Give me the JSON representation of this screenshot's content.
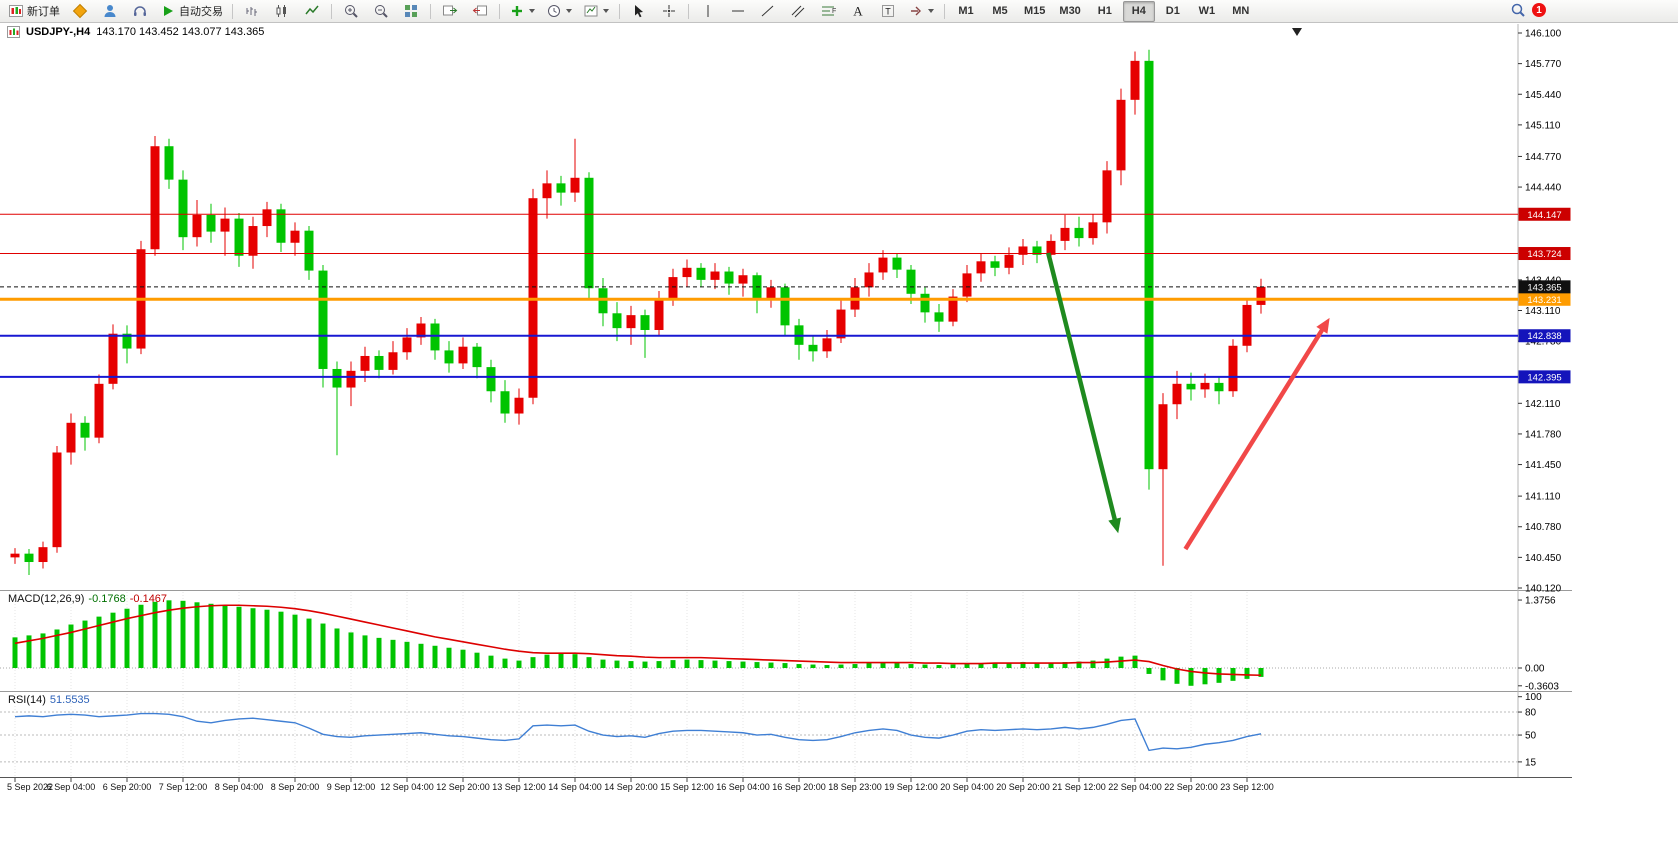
{
  "toolbar": {
    "new_order_label": "新订单",
    "auto_trading_label": "自动交易",
    "timeframes": [
      "M1",
      "M5",
      "M15",
      "M30",
      "H1",
      "H4",
      "D1",
      "W1",
      "MN"
    ],
    "active_timeframe": "H4",
    "notification_count": "1"
  },
  "title": {
    "symbol_period": "USDJPY-,H4",
    "ohlc": "143.170 143.452 143.077 143.365"
  },
  "indicators": {
    "macd_label": "MACD(12,26,9)",
    "macd_main_value": "-0.1768",
    "macd_signal_value": "-0.1467",
    "rsi_label": "RSI(14)",
    "rsi_value": "51.5535"
  },
  "chart_data": {
    "type": "candlestick",
    "symbol": "USDJPY-",
    "timeframe": "H4",
    "current_bar": {
      "open": 143.17,
      "high": 143.452,
      "low": 143.077,
      "close": 143.365
    },
    "colors": {
      "bull": "#e60000",
      "bear": "#00c400",
      "macd_hist": "#00c400",
      "macd_signal": "#dd0000",
      "rsi_line": "#3f7fd4"
    },
    "price_axis": {
      "min": 140.12,
      "max": 146.1,
      "ticks": [
        146.1,
        145.77,
        145.44,
        145.11,
        144.77,
        144.44,
        143.44,
        143.11,
        142.78,
        142.11,
        141.78,
        141.45,
        141.11,
        140.78,
        140.45,
        140.12
      ]
    },
    "hlines": [
      {
        "price": 144.147,
        "label": "144.147",
        "color": "#e00000",
        "width": 1,
        "style": "solid",
        "badge_color": "#cc0000"
      },
      {
        "price": 143.724,
        "label": "143.724",
        "color": "#e00000",
        "width": 1,
        "style": "solid",
        "badge_color": "#cc0000"
      },
      {
        "price": 143.231,
        "label": "143.231",
        "color": "#ff9c00",
        "width": 3,
        "style": "solid",
        "badge_color": "#ff9c00"
      },
      {
        "price": 142.838,
        "label": "142.838",
        "color": "#1818d2",
        "width": 2,
        "style": "solid",
        "badge_color": "#1414bb"
      },
      {
        "price": 142.395,
        "label": "142.395",
        "color": "#1818d2",
        "width": 2,
        "style": "solid",
        "badge_color": "#1414bb"
      },
      {
        "price": 143.365,
        "label": "143.365",
        "color": "#101010",
        "width": 1,
        "style": "dash",
        "badge_color": "#101010"
      }
    ],
    "time_labels": [
      "5 Sep 2022",
      "6 Sep 04:00",
      "6 Sep 20:00",
      "7 Sep 12:00",
      "8 Sep 04:00",
      "8 Sep 20:00",
      "9 Sep 12:00",
      "12 Sep 04:00",
      "12 Sep 20:00",
      "13 Sep 12:00",
      "14 Sep 04:00",
      "14 Sep 20:00",
      "15 Sep 12:00",
      "16 Sep 04:00",
      "16 Sep 20:00",
      "18 Sep 23:00",
      "19 Sep 12:00",
      "20 Sep 04:00",
      "20 Sep 20:00",
      "21 Sep 12:00",
      "22 Sep 04:00",
      "22 Sep 20:00",
      "23 Sep 12:00"
    ],
    "candles": [
      [
        140.45,
        140.55,
        140.38,
        140.49
      ],
      [
        140.49,
        140.54,
        140.26,
        140.4
      ],
      [
        140.4,
        140.62,
        140.33,
        140.56
      ],
      [
        140.56,
        141.65,
        140.5,
        141.58
      ],
      [
        141.58,
        142.0,
        141.45,
        141.9
      ],
      [
        141.9,
        141.97,
        141.6,
        141.74
      ],
      [
        141.74,
        142.42,
        141.68,
        142.32
      ],
      [
        142.32,
        142.96,
        142.26,
        142.86
      ],
      [
        142.86,
        142.95,
        142.54,
        142.7
      ],
      [
        142.7,
        143.86,
        142.64,
        143.77
      ],
      [
        143.77,
        144.99,
        143.7,
        144.88
      ],
      [
        144.88,
        144.96,
        144.42,
        144.52
      ],
      [
        144.52,
        144.62,
        143.76,
        143.9
      ],
      [
        143.9,
        144.3,
        143.8,
        144.14
      ],
      [
        144.14,
        144.26,
        143.84,
        143.96
      ],
      [
        143.96,
        144.22,
        143.7,
        144.1
      ],
      [
        144.1,
        144.16,
        143.58,
        143.7
      ],
      [
        143.7,
        144.12,
        143.56,
        144.02
      ],
      [
        144.02,
        144.28,
        143.9,
        144.2
      ],
      [
        144.2,
        144.26,
        143.74,
        143.84
      ],
      [
        143.84,
        144.06,
        143.7,
        143.97
      ],
      [
        143.97,
        144.02,
        143.44,
        143.54
      ],
      [
        143.54,
        143.6,
        142.28,
        142.48
      ],
      [
        142.48,
        142.56,
        141.55,
        142.28
      ],
      [
        142.28,
        142.56,
        142.08,
        142.46
      ],
      [
        142.46,
        142.72,
        142.34,
        142.62
      ],
      [
        142.62,
        142.68,
        142.38,
        142.47
      ],
      [
        142.47,
        142.78,
        142.42,
        142.66
      ],
      [
        142.66,
        142.92,
        142.58,
        142.82
      ],
      [
        142.82,
        143.04,
        142.74,
        142.97
      ],
      [
        142.97,
        143.02,
        142.58,
        142.68
      ],
      [
        142.68,
        142.78,
        142.44,
        142.54
      ],
      [
        142.54,
        142.82,
        142.48,
        142.72
      ],
      [
        142.72,
        142.76,
        142.38,
        142.5
      ],
      [
        142.5,
        142.58,
        142.12,
        142.24
      ],
      [
        142.24,
        142.36,
        141.9,
        142.0
      ],
      [
        142.0,
        142.27,
        141.88,
        142.17
      ],
      [
        142.17,
        144.42,
        142.1,
        144.32
      ],
      [
        144.32,
        144.62,
        144.1,
        144.48
      ],
      [
        144.48,
        144.56,
        144.24,
        144.38
      ],
      [
        144.38,
        144.96,
        144.28,
        144.54
      ],
      [
        144.54,
        144.6,
        143.22,
        143.35
      ],
      [
        143.35,
        143.46,
        142.94,
        143.08
      ],
      [
        143.08,
        143.2,
        142.78,
        142.92
      ],
      [
        142.92,
        143.16,
        142.74,
        143.06
      ],
      [
        143.06,
        143.12,
        142.6,
        142.9
      ],
      [
        142.9,
        143.32,
        142.84,
        143.22
      ],
      [
        143.22,
        143.56,
        143.16,
        143.47
      ],
      [
        143.47,
        143.66,
        143.36,
        143.57
      ],
      [
        143.57,
        143.62,
        143.36,
        143.44
      ],
      [
        143.44,
        143.62,
        143.34,
        143.53
      ],
      [
        143.53,
        143.58,
        143.28,
        143.4
      ],
      [
        143.4,
        143.56,
        143.26,
        143.49
      ],
      [
        143.49,
        143.52,
        143.08,
        143.24
      ],
      [
        143.24,
        143.44,
        143.14,
        143.36
      ],
      [
        143.36,
        143.4,
        142.84,
        142.95
      ],
      [
        142.95,
        143.02,
        142.58,
        142.74
      ],
      [
        142.74,
        142.84,
        142.56,
        142.67
      ],
      [
        142.67,
        142.9,
        142.6,
        142.81
      ],
      [
        142.81,
        143.22,
        142.76,
        143.12
      ],
      [
        143.12,
        143.46,
        143.04,
        143.36
      ],
      [
        143.36,
        143.62,
        143.26,
        143.52
      ],
      [
        143.52,
        143.76,
        143.44,
        143.68
      ],
      [
        143.68,
        143.73,
        143.46,
        143.55
      ],
      [
        143.55,
        143.6,
        143.18,
        143.29
      ],
      [
        143.29,
        143.36,
        142.98,
        143.09
      ],
      [
        143.09,
        143.18,
        142.88,
        142.99
      ],
      [
        142.99,
        143.34,
        142.94,
        143.26
      ],
      [
        143.26,
        143.6,
        143.2,
        143.51
      ],
      [
        143.51,
        143.72,
        143.42,
        143.64
      ],
      [
        143.64,
        143.7,
        143.48,
        143.57
      ],
      [
        143.57,
        143.79,
        143.5,
        143.71
      ],
      [
        143.71,
        143.88,
        143.6,
        143.8
      ],
      [
        143.8,
        143.86,
        143.62,
        143.71
      ],
      [
        143.71,
        143.93,
        143.66,
        143.86
      ],
      [
        143.86,
        144.14,
        143.76,
        144.0
      ],
      [
        144.0,
        144.12,
        143.8,
        143.89
      ],
      [
        143.89,
        144.15,
        143.82,
        144.06
      ],
      [
        144.06,
        144.72,
        143.94,
        144.62
      ],
      [
        144.62,
        145.5,
        144.46,
        145.38
      ],
      [
        145.38,
        145.9,
        145.22,
        145.8
      ],
      [
        145.8,
        145.92,
        141.18,
        141.4
      ],
      [
        141.4,
        142.22,
        140.36,
        142.1
      ],
      [
        142.1,
        142.46,
        141.94,
        142.32
      ],
      [
        142.32,
        142.44,
        142.14,
        142.26
      ],
      [
        142.26,
        142.43,
        142.17,
        142.33
      ],
      [
        142.33,
        142.4,
        142.1,
        142.24
      ],
      [
        142.24,
        142.8,
        142.18,
        142.73
      ],
      [
        142.73,
        143.24,
        142.66,
        143.17
      ],
      [
        143.17,
        143.452,
        143.077,
        143.365
      ]
    ],
    "arrows": [
      {
        "name": "bearish-projection-arrow",
        "color": "#1f8a1f",
        "from": {
          "index": 73.8,
          "price": 143.73
        },
        "to": {
          "index": 78.8,
          "price": 140.71
        }
      },
      {
        "name": "bullish-projection-arrow",
        "color": "#f14848",
        "from": {
          "index": 83.6,
          "price": 140.54
        },
        "to": {
          "index": 93.9,
          "price": 143.03
        }
      }
    ],
    "macd": {
      "histogram": [
        0.62,
        0.66,
        0.7,
        0.78,
        0.88,
        0.96,
        1.04,
        1.12,
        1.2,
        1.28,
        1.34,
        1.37,
        1.36,
        1.33,
        1.3,
        1.27,
        1.24,
        1.21,
        1.18,
        1.14,
        1.08,
        1.0,
        0.9,
        0.8,
        0.72,
        0.66,
        0.61,
        0.57,
        0.53,
        0.49,
        0.45,
        0.41,
        0.37,
        0.31,
        0.25,
        0.19,
        0.15,
        0.22,
        0.27,
        0.29,
        0.28,
        0.22,
        0.17,
        0.15,
        0.14,
        0.13,
        0.14,
        0.16,
        0.17,
        0.16,
        0.15,
        0.14,
        0.13,
        0.12,
        0.11,
        0.1,
        0.08,
        0.07,
        0.06,
        0.07,
        0.08,
        0.1,
        0.11,
        0.1,
        0.08,
        0.07,
        0.06,
        0.07,
        0.09,
        0.1,
        0.11,
        0.11,
        0.12,
        0.11,
        0.11,
        0.12,
        0.13,
        0.15,
        0.19,
        0.23,
        0.25,
        -0.12,
        -0.25,
        -0.32,
        -0.36,
        -0.33,
        -0.3,
        -0.26,
        -0.22,
        -0.18
      ],
      "signal": [
        0.5,
        0.55,
        0.6,
        0.66,
        0.72,
        0.79,
        0.86,
        0.93,
        1.0,
        1.06,
        1.12,
        1.17,
        1.21,
        1.24,
        1.26,
        1.27,
        1.27,
        1.26,
        1.25,
        1.23,
        1.2,
        1.16,
        1.11,
        1.05,
        0.99,
        0.93,
        0.87,
        0.81,
        0.75,
        0.69,
        0.63,
        0.58,
        0.53,
        0.48,
        0.43,
        0.38,
        0.34,
        0.31,
        0.3,
        0.3,
        0.3,
        0.29,
        0.27,
        0.25,
        0.24,
        0.22,
        0.21,
        0.21,
        0.21,
        0.21,
        0.2,
        0.19,
        0.18,
        0.17,
        0.16,
        0.15,
        0.14,
        0.13,
        0.12,
        0.11,
        0.11,
        0.11,
        0.11,
        0.11,
        0.11,
        0.1,
        0.1,
        0.09,
        0.09,
        0.09,
        0.1,
        0.1,
        0.1,
        0.1,
        0.1,
        0.1,
        0.11,
        0.11,
        0.12,
        0.14,
        0.16,
        0.13,
        0.05,
        -0.02,
        -0.07,
        -0.1,
        -0.12,
        -0.13,
        -0.14,
        -0.1467
      ],
      "scale_labels": [
        "1.3756",
        "0.00",
        "-0.3603"
      ],
      "scale_values": [
        1.3756,
        0,
        -0.3603
      ]
    },
    "rsi": {
      "values": [
        74,
        75,
        74,
        76,
        77,
        76,
        74,
        75,
        76,
        78,
        78,
        77,
        74,
        68,
        66,
        69,
        71,
        72,
        70,
        68,
        66,
        59,
        51,
        48,
        47,
        49,
        50,
        51,
        52,
        53,
        51,
        49,
        48,
        46,
        44,
        43,
        45,
        62,
        63,
        62,
        63,
        55,
        50,
        48,
        49,
        47,
        52,
        55,
        56,
        56,
        55,
        54,
        53,
        50,
        51,
        47,
        44,
        43,
        44,
        48,
        53,
        56,
        58,
        56,
        50,
        47,
        46,
        50,
        55,
        57,
        56,
        57,
        58,
        57,
        58,
        60,
        58,
        60,
        64,
        69,
        71,
        30,
        33,
        32,
        34,
        38,
        40,
        43,
        48,
        51.55
      ],
      "levels": [
        80,
        50,
        15
      ],
      "scale_labels": [
        {
          "v": 100,
          "t": "100"
        },
        {
          "v": 80,
          "t": "80"
        },
        {
          "v": 50,
          "t": "50"
        },
        {
          "v": 15,
          "t": "15"
        }
      ]
    }
  }
}
